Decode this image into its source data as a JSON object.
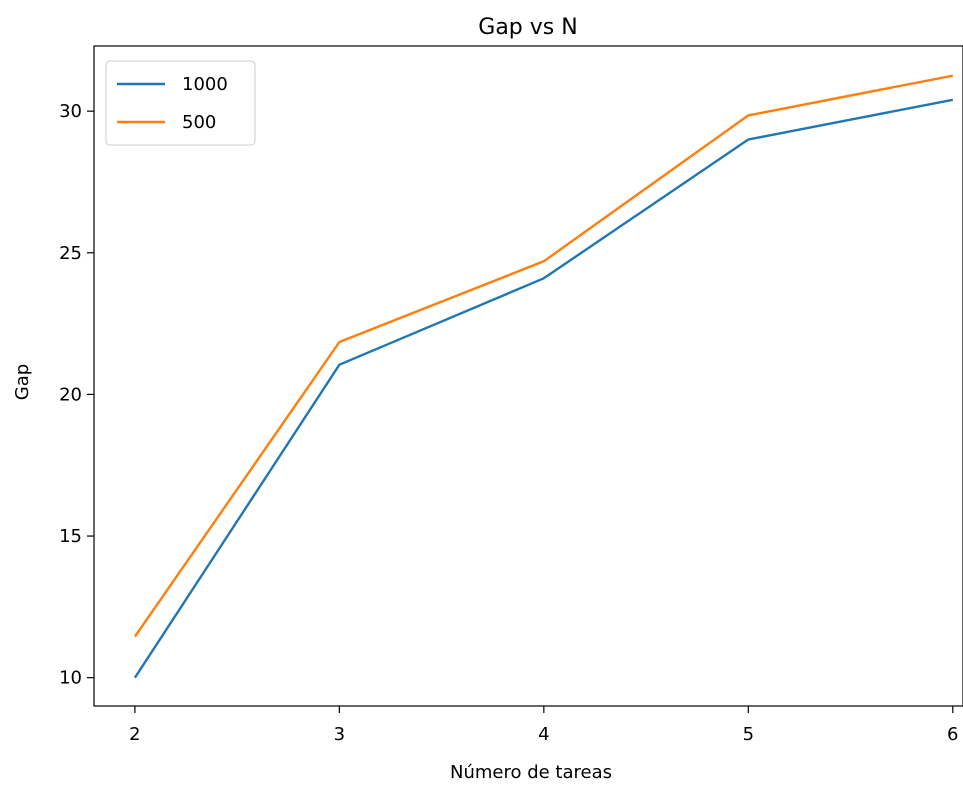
{
  "chart_data": {
    "type": "line",
    "title": "Gap vs N",
    "xlabel": "Número de tareas",
    "ylabel": "Gap",
    "x": [
      2,
      3,
      4,
      5,
      6
    ],
    "xticks": [
      "2",
      "3",
      "4",
      "5",
      "6"
    ],
    "yticks": [
      "10",
      "15",
      "20",
      "25",
      "30"
    ],
    "xlim": [
      1.8,
      6.05
    ],
    "ylim": [
      9.0,
      32.3
    ],
    "grid": false,
    "legend_position": "top-left",
    "series": [
      {
        "name": "1000",
        "color": "#1f77b4",
        "values": [
          10.0,
          21.05,
          24.1,
          29.0,
          30.4
        ]
      },
      {
        "name": "500",
        "color": "#ff7f0e",
        "values": [
          11.45,
          21.85,
          24.7,
          29.85,
          31.25
        ]
      }
    ]
  }
}
